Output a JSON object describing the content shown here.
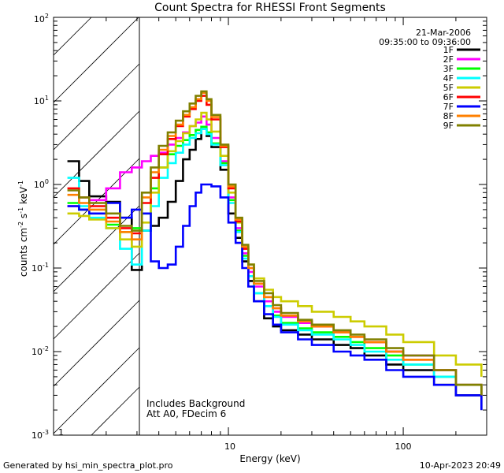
{
  "chart_data": {
    "type": "line",
    "title": "Count Spectra for RHESSI Front Segments",
    "xlabel": "Energy (keV)",
    "ylabel": "counts cm-2 s-1 keV-1",
    "xscale": "log",
    "yscale": "log",
    "xlim": [
      1,
      300
    ],
    "ylim": [
      0.001,
      100
    ],
    "x_tick_labels": [
      "1",
      "10",
      "100"
    ],
    "y_tick_labels": [
      "10-3",
      "10-2",
      "10-1",
      "100",
      "101",
      "102"
    ],
    "hatched_region_keV": [
      1,
      3
    ],
    "date": "21-Mar-2006",
    "time_range": "09:35:00 to 09:36:00",
    "annotations": [
      "Includes Background",
      "Att A0, FDecim 6"
    ],
    "footer_left": "Generated by hsi_min_spectra_plot.pro",
    "footer_right": "10-Apr-2023 20:49",
    "series": [
      {
        "name": "1F",
        "color": "#000000",
        "x": [
          1.2,
          1.4,
          1.6,
          2,
          2.4,
          2.8,
          3.2,
          3.6,
          4,
          4.5,
          5,
          5.5,
          6,
          6.5,
          7,
          7.5,
          8,
          9,
          10,
          11,
          12,
          13,
          14,
          16,
          18,
          20,
          25,
          30,
          40,
          50,
          60,
          80,
          100,
          150,
          200,
          280
        ],
        "y": [
          1.9,
          1.1,
          0.72,
          0.62,
          0.4,
          0.095,
          0.28,
          0.32,
          0.4,
          0.62,
          1.1,
          2.0,
          2.6,
          3.5,
          4.6,
          3.8,
          2.8,
          1.5,
          0.45,
          0.23,
          0.12,
          0.07,
          0.04,
          0.025,
          0.02,
          0.018,
          0.016,
          0.014,
          0.012,
          0.011,
          0.009,
          0.007,
          0.006,
          0.004,
          0.003,
          0.002
        ]
      },
      {
        "name": "2F",
        "color": "#ff00ff",
        "x": [
          1.2,
          1.4,
          1.6,
          2,
          2.4,
          2.8,
          3.2,
          3.6,
          4,
          4.5,
          5,
          5.5,
          6,
          6.5,
          7,
          7.5,
          8,
          9,
          10,
          11,
          12,
          13,
          14,
          16,
          18,
          20,
          25,
          30,
          40,
          50,
          60,
          80,
          100,
          150,
          200,
          280
        ],
        "y": [
          0.55,
          0.5,
          0.65,
          0.9,
          1.4,
          1.6,
          1.9,
          2.2,
          2.4,
          3.0,
          3.6,
          4.2,
          5.0,
          5.5,
          6.5,
          5.2,
          3.6,
          1.9,
          0.7,
          0.3,
          0.15,
          0.09,
          0.06,
          0.04,
          0.03,
          0.026,
          0.022,
          0.02,
          0.017,
          0.015,
          0.013,
          0.01,
          0.009,
          0.006,
          0.004,
          0.003
        ]
      },
      {
        "name": "3F",
        "color": "#00ff00",
        "x": [
          1.2,
          1.4,
          1.6,
          2,
          2.4,
          2.8,
          3.2,
          3.6,
          4,
          4.5,
          5,
          5.5,
          6,
          6.5,
          7,
          7.5,
          8,
          9,
          10,
          11,
          12,
          13,
          14,
          16,
          18,
          20,
          25,
          30,
          40,
          50,
          60,
          80,
          100,
          150,
          200,
          280
        ],
        "y": [
          0.6,
          0.5,
          0.45,
          0.33,
          0.27,
          0.3,
          0.45,
          0.9,
          1.6,
          2.3,
          2.9,
          3.4,
          3.9,
          4.5,
          4.9,
          4.2,
          3.1,
          1.8,
          0.65,
          0.28,
          0.14,
          0.08,
          0.05,
          0.035,
          0.027,
          0.022,
          0.019,
          0.017,
          0.015,
          0.013,
          0.011,
          0.009,
          0.007,
          0.005,
          0.004,
          0.003
        ]
      },
      {
        "name": "4F",
        "color": "#00ffff",
        "x": [
          1.2,
          1.4,
          1.6,
          2,
          2.4,
          2.8,
          3.2,
          3.6,
          4,
          4.5,
          5,
          5.5,
          6,
          6.5,
          7,
          7.5,
          8,
          9,
          10,
          11,
          12,
          13,
          14,
          16,
          18,
          20,
          25,
          30,
          40,
          50,
          60,
          80,
          100,
          150,
          200,
          280
        ],
        "y": [
          1.2,
          0.55,
          0.4,
          0.3,
          0.17,
          0.11,
          0.28,
          0.55,
          1.2,
          1.8,
          2.4,
          3.0,
          3.6,
          4.1,
          4.6,
          4.0,
          3.0,
          1.7,
          0.6,
          0.27,
          0.13,
          0.08,
          0.05,
          0.035,
          0.026,
          0.021,
          0.018,
          0.016,
          0.014,
          0.012,
          0.01,
          0.008,
          0.007,
          0.005,
          0.004,
          0.003
        ]
      },
      {
        "name": "5F",
        "color": "#cccc00",
        "x": [
          1.2,
          1.4,
          1.6,
          2,
          2.4,
          2.8,
          3.2,
          3.6,
          4,
          4.5,
          5,
          5.5,
          6,
          6.5,
          7,
          7.5,
          8,
          9,
          10,
          11,
          12,
          13,
          14,
          16,
          18,
          20,
          25,
          30,
          40,
          50,
          60,
          80,
          100,
          150,
          200,
          280
        ],
        "y": [
          0.45,
          0.42,
          0.38,
          0.3,
          0.22,
          0.18,
          0.35,
          0.8,
          1.6,
          2.5,
          3.3,
          4.1,
          5.0,
          6.0,
          7.2,
          6.0,
          4.3,
          2.2,
          0.8,
          0.35,
          0.18,
          0.11,
          0.075,
          0.055,
          0.045,
          0.04,
          0.035,
          0.03,
          0.026,
          0.023,
          0.02,
          0.016,
          0.013,
          0.009,
          0.007,
          0.005
        ]
      },
      {
        "name": "6F",
        "color": "#ff0000",
        "x": [
          1.2,
          1.4,
          1.6,
          2,
          2.4,
          2.8,
          3.2,
          3.6,
          4,
          4.5,
          5,
          5.5,
          6,
          6.5,
          7,
          7.5,
          8,
          9,
          10,
          11,
          12,
          13,
          14,
          16,
          18,
          20,
          25,
          30,
          40,
          50,
          60,
          80,
          100,
          150,
          200,
          280
        ],
        "y": [
          0.9,
          0.7,
          0.55,
          0.4,
          0.3,
          0.26,
          0.6,
          1.2,
          2.3,
          3.5,
          5.0,
          6.5,
          8.0,
          10.0,
          11.5,
          9.0,
          6.0,
          2.8,
          0.9,
          0.36,
          0.17,
          0.1,
          0.065,
          0.045,
          0.033,
          0.027,
          0.023,
          0.02,
          0.017,
          0.015,
          0.013,
          0.01,
          0.008,
          0.006,
          0.004,
          0.003
        ]
      },
      {
        "name": "7F",
        "color": "#0000ff",
        "x": [
          1.2,
          1.4,
          1.6,
          2,
          2.4,
          2.8,
          3.2,
          3.6,
          4,
          4.5,
          5,
          5.5,
          6,
          6.5,
          7,
          7.5,
          8,
          9,
          10,
          11,
          12,
          13,
          14,
          16,
          18,
          20,
          25,
          30,
          40,
          50,
          60,
          80,
          100,
          150,
          200,
          280
        ],
        "y": [
          0.55,
          0.5,
          0.45,
          0.6,
          0.4,
          0.5,
          0.45,
          0.12,
          0.1,
          0.11,
          0.18,
          0.32,
          0.55,
          0.8,
          1.0,
          1.0,
          0.95,
          0.7,
          0.35,
          0.2,
          0.1,
          0.06,
          0.04,
          0.028,
          0.021,
          0.017,
          0.014,
          0.012,
          0.01,
          0.009,
          0.008,
          0.006,
          0.005,
          0.004,
          0.003,
          0.002
        ]
      },
      {
        "name": "8F",
        "color": "#ff8000",
        "x": [
          1.2,
          1.4,
          1.6,
          2,
          2.4,
          2.8,
          3.2,
          3.6,
          4,
          4.5,
          5,
          5.5,
          6,
          6.5,
          7,
          7.5,
          8,
          9,
          10,
          11,
          12,
          13,
          14,
          16,
          18,
          20,
          25,
          30,
          40,
          50,
          60,
          80,
          100,
          150,
          200,
          280
        ],
        "y": [
          0.75,
          0.6,
          0.5,
          0.36,
          0.27,
          0.22,
          0.7,
          1.4,
          2.6,
          3.8,
          5.2,
          6.8,
          8.4,
          10.5,
          12.5,
          10.0,
          6.4,
          2.9,
          0.95,
          0.38,
          0.18,
          0.1,
          0.065,
          0.045,
          0.033,
          0.027,
          0.023,
          0.02,
          0.017,
          0.015,
          0.013,
          0.01,
          0.008,
          0.006,
          0.004,
          0.003
        ]
      },
      {
        "name": "9F",
        "color": "#808000",
        "x": [
          1.2,
          1.4,
          1.6,
          2,
          2.4,
          2.8,
          3.2,
          3.6,
          4,
          4.5,
          5,
          5.5,
          6,
          6.5,
          7,
          7.5,
          8,
          9,
          10,
          11,
          12,
          13,
          14,
          16,
          18,
          20,
          25,
          30,
          40,
          50,
          60,
          80,
          100,
          150,
          200,
          280
        ],
        "y": [
          0.85,
          0.7,
          0.6,
          0.45,
          0.32,
          0.28,
          0.8,
          1.6,
          2.9,
          4.2,
          5.8,
          7.5,
          9.3,
          11.5,
          13.0,
          10.5,
          6.8,
          3.0,
          1.0,
          0.4,
          0.19,
          0.11,
          0.07,
          0.05,
          0.036,
          0.029,
          0.024,
          0.021,
          0.018,
          0.016,
          0.014,
          0.011,
          0.009,
          0.006,
          0.004,
          0.003
        ]
      }
    ]
  }
}
